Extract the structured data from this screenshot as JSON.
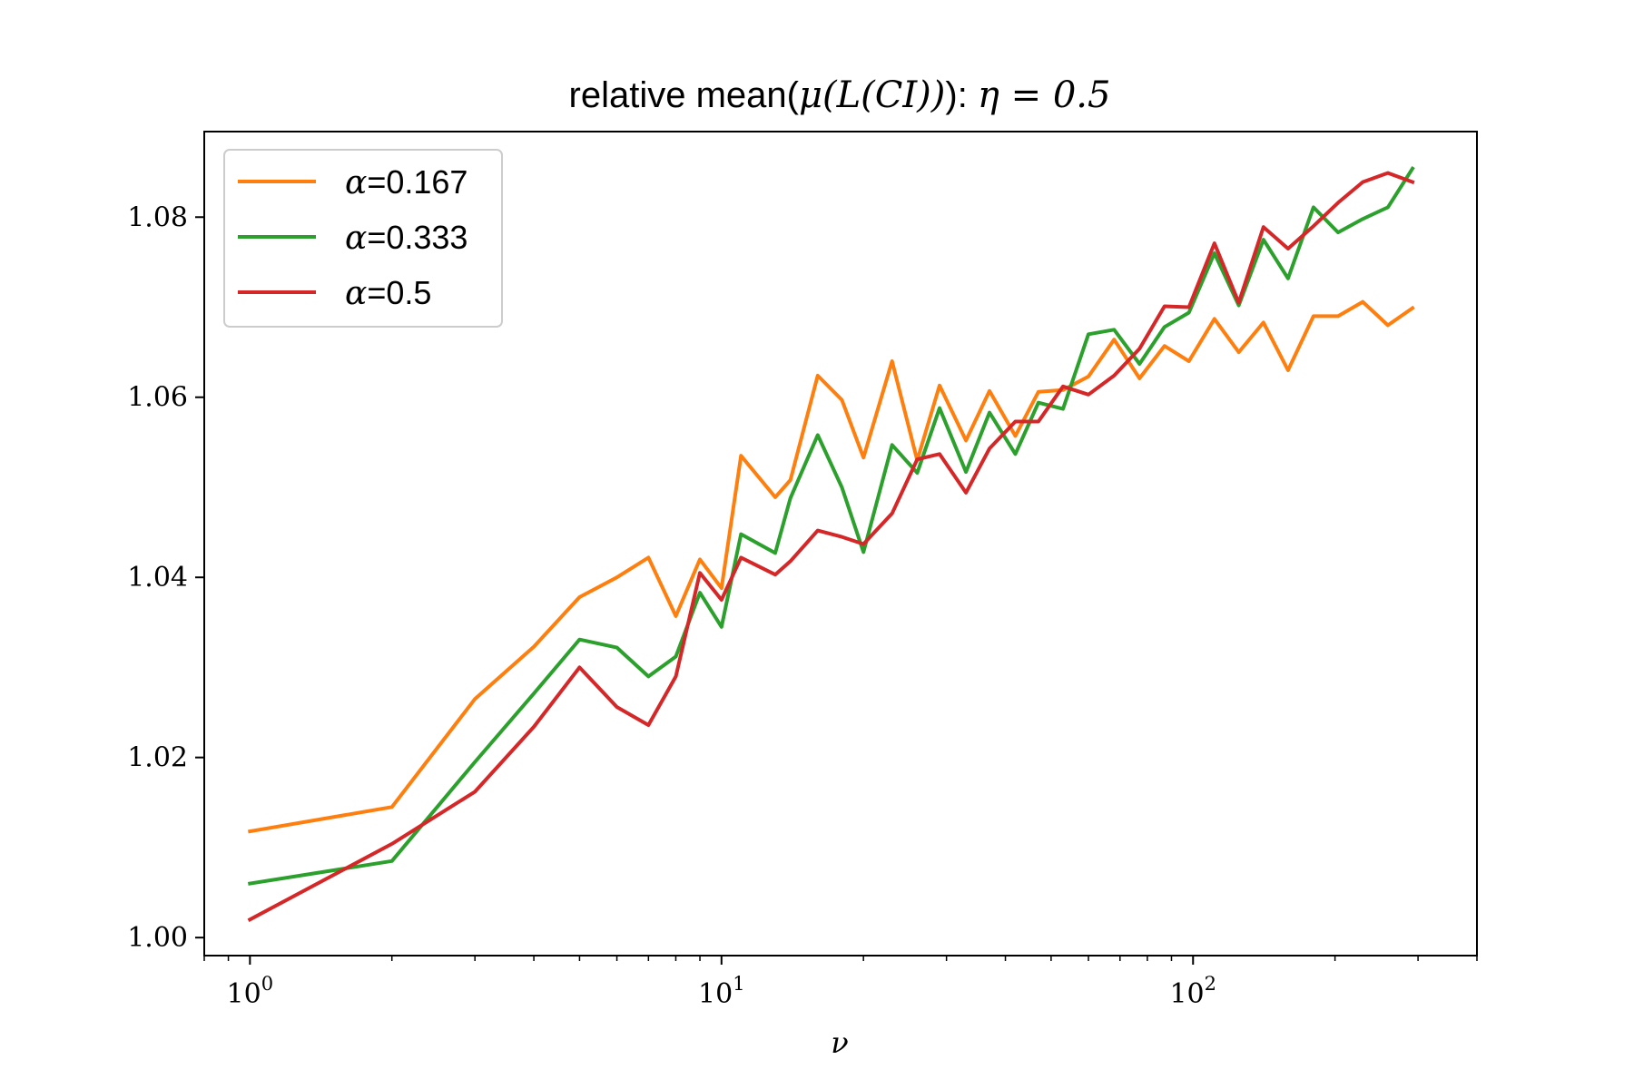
{
  "chart_data": {
    "type": "line",
    "title_prefix": "relative mean(",
    "title_mu": "μ",
    "title_inner": "(L(CI))",
    "title_suffix": "): ",
    "title_eta": "η",
    "title_eq": " = 0.5",
    "xlabel": "ν",
    "ylabel": "",
    "xscale": "log",
    "xlim": [
      0.8,
      400
    ],
    "ylim": [
      0.998,
      1.0895
    ],
    "xticks": [
      {
        "value": 1,
        "base": "10",
        "exp": "0"
      },
      {
        "value": 10,
        "base": "10",
        "exp": "1"
      },
      {
        "value": 100,
        "base": "10",
        "exp": "2"
      }
    ],
    "yticks": [
      {
        "value": 1.0,
        "label": "1.00"
      },
      {
        "value": 1.02,
        "label": "1.02"
      },
      {
        "value": 1.04,
        "label": "1.04"
      },
      {
        "value": 1.06,
        "label": "1.06"
      },
      {
        "value": 1.08,
        "label": "1.08"
      }
    ],
    "grid": false,
    "legend_position": "top-left",
    "x": [
      1,
      2,
      3,
      4,
      5,
      6,
      7,
      8,
      9,
      10,
      11,
      13,
      14,
      16,
      18,
      20,
      23,
      26,
      29,
      33,
      37,
      42,
      47,
      53,
      60,
      68,
      77,
      87,
      98,
      111,
      125,
      141,
      159,
      180,
      203,
      229,
      259,
      292
    ],
    "series": [
      {
        "name": "α=0.167",
        "legend_symbol": "α",
        "legend_value": "=0.167",
        "color": "#ff7f0e",
        "values": [
          1.0118,
          1.0145,
          1.0265,
          1.0323,
          1.0378,
          1.04,
          1.0422,
          1.0357,
          1.042,
          1.0388,
          1.0535,
          1.0489,
          1.0508,
          1.0624,
          1.0597,
          1.0533,
          1.064,
          1.053,
          1.0613,
          1.0552,
          1.0607,
          1.0557,
          1.0606,
          1.0608,
          1.0623,
          1.0664,
          1.0621,
          1.0657,
          1.064,
          1.0687,
          1.065,
          1.0683,
          1.063,
          1.069,
          1.069,
          1.0706,
          1.068,
          1.0699
        ]
      },
      {
        "name": "α=0.333",
        "legend_symbol": "α",
        "legend_value": "=0.333",
        "color": "#2ca02c",
        "values": [
          1.006,
          1.0085,
          1.0195,
          1.0271,
          1.0331,
          1.0322,
          1.029,
          1.0312,
          1.0383,
          1.0345,
          1.0448,
          1.0427,
          1.0488,
          1.0558,
          1.05,
          1.0428,
          1.0547,
          1.0516,
          1.0588,
          1.0517,
          1.0583,
          1.0537,
          1.0594,
          1.0587,
          1.067,
          1.0675,
          1.0637,
          1.0678,
          1.0694,
          1.076,
          1.0702,
          1.0775,
          1.0732,
          1.0811,
          1.0783,
          1.0798,
          1.0811,
          1.0854
        ]
      },
      {
        "name": "α=0.5",
        "legend_symbol": "α",
        "legend_value": "=0.5",
        "color": "#d62728",
        "values": [
          1.002,
          1.0104,
          1.0162,
          1.0234,
          1.03,
          1.0256,
          1.0236,
          1.029,
          1.0405,
          1.0375,
          1.0422,
          1.0403,
          1.0418,
          1.0452,
          1.0445,
          1.0437,
          1.0471,
          1.0531,
          1.0537,
          1.0494,
          1.0543,
          1.0573,
          1.0573,
          1.0612,
          1.0603,
          1.0624,
          1.0654,
          1.0701,
          1.07,
          1.0771,
          1.0705,
          1.0789,
          1.0765,
          1.079,
          1.0816,
          1.0839,
          1.0849,
          1.0839
        ]
      }
    ]
  }
}
